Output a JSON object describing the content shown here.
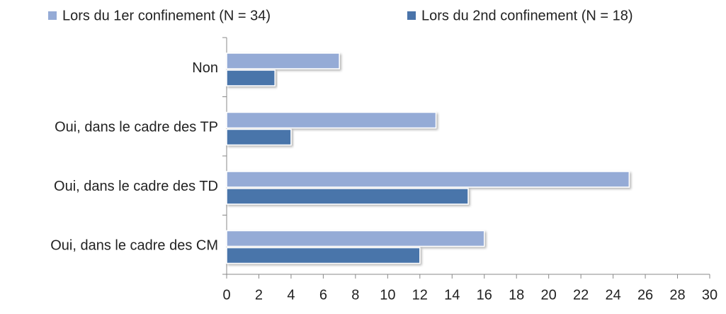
{
  "chart_data": {
    "type": "barh",
    "categories": [
      "Non",
      "Oui, dans le cadre des TP",
      "Oui, dans le cadre des TD",
      "Oui, dans le cadre des CM"
    ],
    "series": [
      {
        "name": "Lors du 1er confinement (N = 34)",
        "color": "#95abd6",
        "values": [
          7,
          13,
          25,
          16
        ]
      },
      {
        "name": "Lors du 2nd confinement (N = 18)",
        "color": "#4a74aa",
        "values": [
          3,
          4,
          15,
          12
        ]
      }
    ],
    "xlim": [
      0,
      30
    ],
    "xticks": [
      0,
      2,
      4,
      6,
      8,
      10,
      12,
      14,
      16,
      18,
      20,
      22,
      24,
      26,
      28,
      30
    ],
    "legend": "top",
    "grid": false
  }
}
